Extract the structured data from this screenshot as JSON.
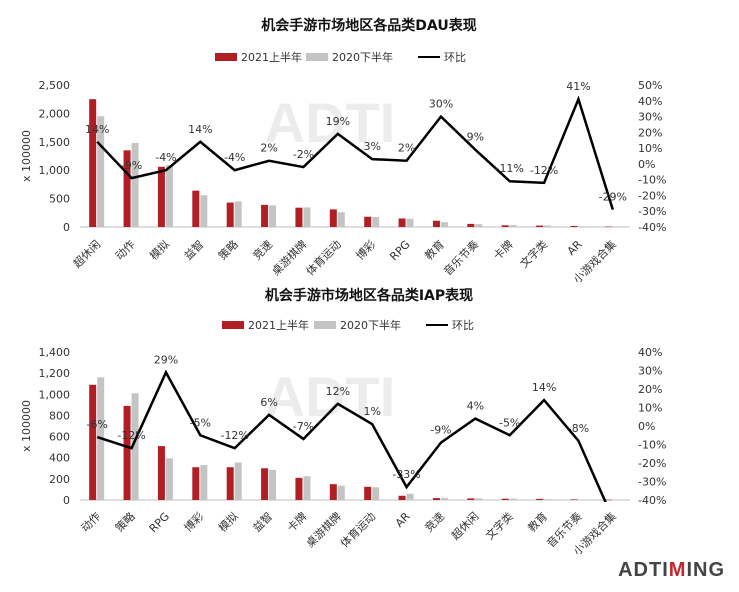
{
  "brand": {
    "prefix": "ADTI",
    "accent": "M",
    "suffix": "ING"
  },
  "colors": {
    "bar_2021": "#b11f24",
    "bar_2020": "#c4c4c4",
    "line": "#000000"
  },
  "chart_data": [
    {
      "type": "bar",
      "title": "机会手游市场地区各品类DAU表现",
      "ylabel": "x 100000",
      "legend": [
        "2021上半年",
        "2020下半年",
        "环比"
      ],
      "legend_position": "top",
      "categories": [
        "超休闲",
        "动作",
        "模拟",
        "益智",
        "策略",
        "竞速",
        "桌游棋牌",
        "体育运动",
        "博彩",
        "RPG",
        "教育",
        "音乐节奏",
        "卡牌",
        "文字类",
        "AR",
        "小游戏合集"
      ],
      "series": [
        {
          "name": "2021上半年",
          "values": [
            2250,
            1350,
            1060,
            640,
            430,
            390,
            340,
            310,
            180,
            150,
            110,
            55,
            30,
            25,
            18,
            8
          ]
        },
        {
          "name": "2020下半年",
          "values": [
            1950,
            1480,
            1090,
            560,
            450,
            380,
            345,
            260,
            175,
            145,
            85,
            50,
            33,
            28,
            13,
            11
          ]
        }
      ],
      "line_series": {
        "name": "环比",
        "values": [
          14,
          -9,
          -4,
          14,
          -4,
          2,
          -2,
          19,
          3,
          2,
          30,
          9,
          -11,
          -12,
          41,
          -29
        ],
        "labels": [
          "14%",
          "-9%",
          "-4%",
          "14%",
          "-4%",
          "2%",
          "-2%",
          "19%",
          "3%",
          "2%",
          "30%",
          "9%",
          "-11%",
          "-12%",
          "41%",
          "-29%"
        ]
      },
      "yticks": [
        "0",
        "500",
        "1,000",
        "1,500",
        "2,000",
        "2,500"
      ],
      "ylim": [
        0,
        2500
      ],
      "y2ticks": [
        "-40%",
        "-30%",
        "-20%",
        "-10%",
        "0%",
        "10%",
        "20%",
        "30%",
        "40%",
        "50%"
      ],
      "y2lim": [
        -40,
        50
      ],
      "grid": false
    },
    {
      "type": "bar",
      "title": "机会手游市场地区各品类IAP表现",
      "ylabel": "x 100000",
      "legend": [
        "2021上半年",
        "2020下半年",
        "环比"
      ],
      "legend_position": "top",
      "categories": [
        "动作",
        "策略",
        "RPG",
        "博彩",
        "模拟",
        "益智",
        "卡牌",
        "桌游棋牌",
        "体育运动",
        "AR",
        "竞速",
        "超休闲",
        "文字类",
        "教育",
        "音乐节奏",
        "小游戏合集"
      ],
      "series": [
        {
          "name": "2021上半年",
          "values": [
            1090,
            890,
            510,
            310,
            310,
            300,
            210,
            150,
            125,
            40,
            18,
            15,
            12,
            10,
            6,
            3
          ]
        },
        {
          "name": "2020下半年",
          "values": [
            1160,
            1010,
            395,
            330,
            355,
            285,
            225,
            135,
            120,
            60,
            20,
            15,
            13,
            8,
            4,
            5
          ]
        }
      ],
      "line_series": {
        "name": "环比",
        "values": [
          -6,
          -12,
          29,
          -5,
          -12,
          6,
          -7,
          12,
          1,
          -33,
          -9,
          4,
          -5,
          14,
          -8,
          -50
        ],
        "labels": [
          "-6%",
          "-12%",
          "29%",
          "-5%",
          "-12%",
          "6%",
          "-7%",
          "12%",
          "1%",
          "-33%",
          "-9%",
          "4%",
          "-5%",
          "14%",
          "-8%",
          ""
        ]
      },
      "yticks": [
        "0",
        "200",
        "400",
        "600",
        "800",
        "1,000",
        "1,200",
        "1,400"
      ],
      "ylim": [
        0,
        1400
      ],
      "y2ticks": [
        "-40%",
        "-30%",
        "-20%",
        "-10%",
        "0%",
        "10%",
        "20%",
        "30%",
        "40%"
      ],
      "y2lim": [
        -40,
        40
      ],
      "grid": false
    }
  ]
}
